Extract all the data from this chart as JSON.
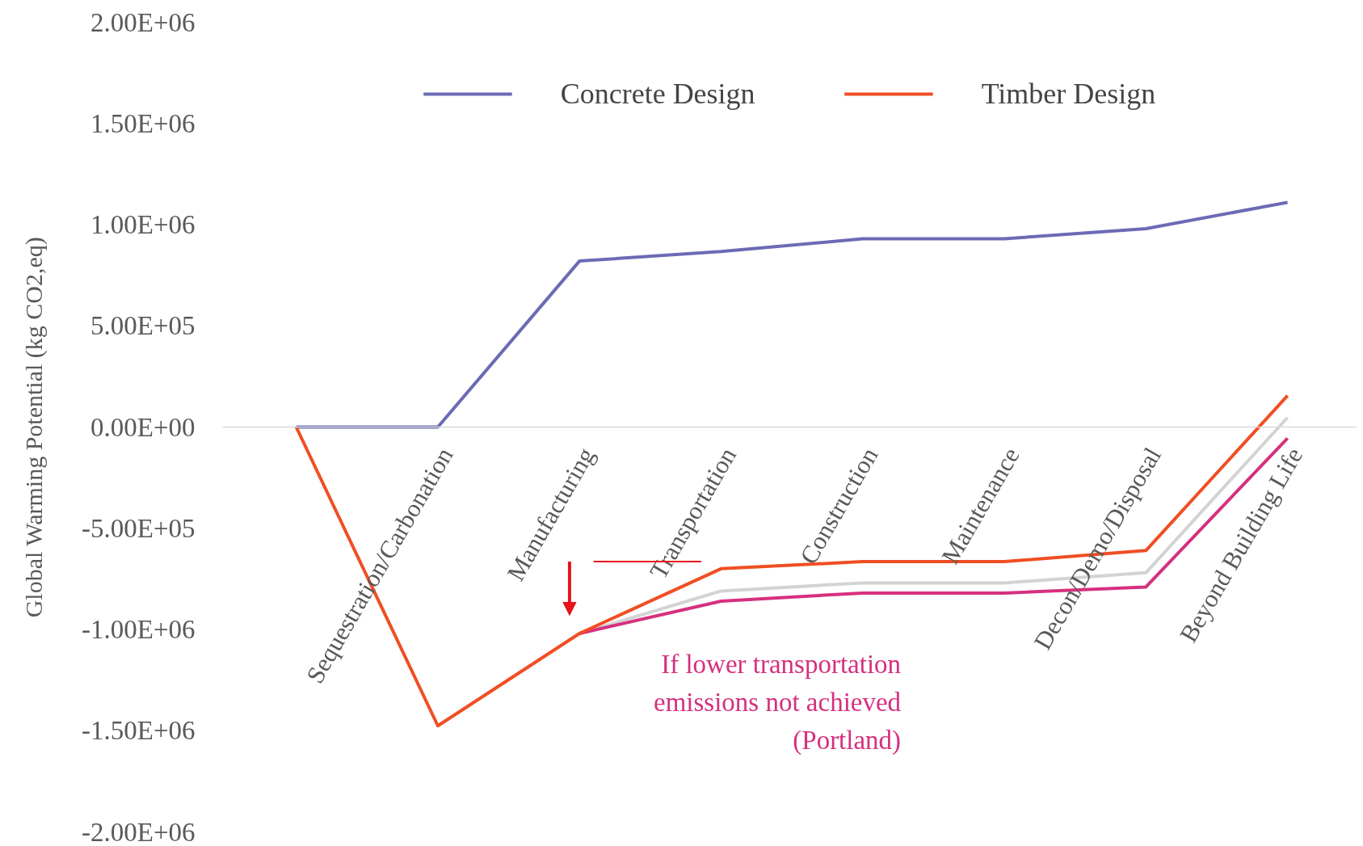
{
  "chart_data": {
    "type": "line",
    "ylabel": "Global Warming Potential (kg CO2,eq)",
    "categories": [
      null,
      "Sequestration/Carbonation",
      "Manufacturing",
      "Transportation",
      "Construction",
      "Maintenance",
      "Decon/Demo/Disposal",
      "Beyond Building Life"
    ],
    "series": [
      {
        "name": "Concrete Design",
        "color": "#6b6bb5",
        "values": [
          0,
          0,
          820000,
          867000,
          930000,
          930000,
          980000,
          1110000
        ]
      },
      {
        "color": "#d3d3d3",
        "values": [
          null,
          null,
          -1020000,
          -810000,
          -770000,
          -770000,
          -720000,
          47000
        ]
      },
      {
        "color": "#d6307f",
        "values": [
          null,
          null,
          -1020000,
          -860000,
          -820000,
          -820000,
          -790000,
          -55000
        ]
      },
      {
        "name": "Timber Design",
        "color": "#f04e23",
        "values": [
          0,
          -1476000,
          -1020000,
          -700000,
          -665000,
          -665000,
          -610000,
          155000
        ]
      }
    ],
    "ylim": [
      -2000000,
      2000000
    ],
    "yticks": [
      {
        "value": -2000000,
        "label": "-2.00E+06"
      },
      {
        "value": -1500000,
        "label": "-1.50E+06"
      },
      {
        "value": -1000000,
        "label": "-1.00E+06"
      },
      {
        "value": -500000,
        "label": "-5.00E+05"
      },
      {
        "value": 0,
        "label": "0.00E+00"
      },
      {
        "value": 500000,
        "label": "5.00E+05"
      },
      {
        "value": 1000000,
        "label": "1.00E+06"
      },
      {
        "value": 1500000,
        "label": "1.50E+06"
      },
      {
        "value": 2000000,
        "label": "2.00E+06"
      }
    ],
    "ref_lines": [
      {
        "axis": "y",
        "value": -665000,
        "color": "#e8141b"
      }
    ],
    "grid": false,
    "legend": "top",
    "marker": "none",
    "line_style": "solid",
    "annotations": [
      "If lower transportation\nemissions not achieved\n(Portland)"
    ]
  }
}
